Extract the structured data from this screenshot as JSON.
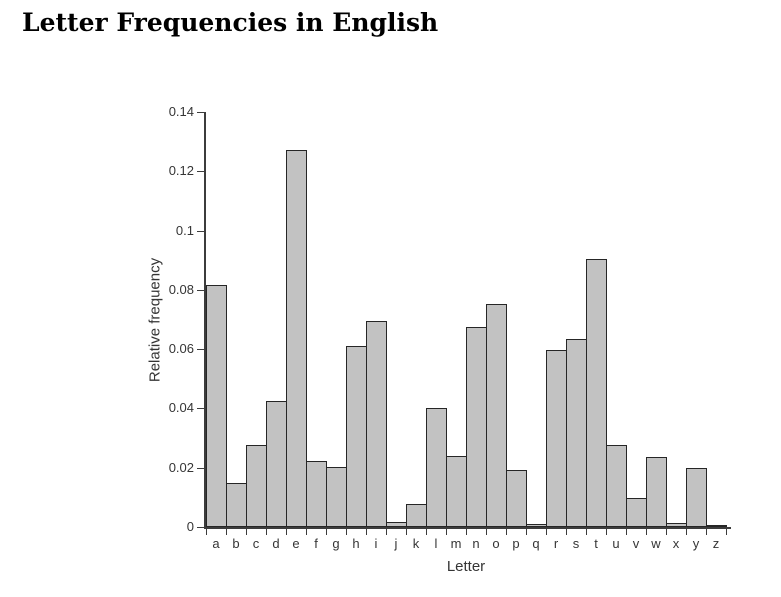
{
  "page": {
    "title": "Letter Frequencies in English"
  },
  "chart_data": {
    "type": "bar",
    "title": "Letter Frequencies in English",
    "xlabel": "Letter",
    "ylabel": "Relative frequency",
    "categories": [
      "a",
      "b",
      "c",
      "d",
      "e",
      "f",
      "g",
      "h",
      "i",
      "j",
      "k",
      "l",
      "m",
      "n",
      "o",
      "p",
      "q",
      "r",
      "s",
      "t",
      "u",
      "v",
      "w",
      "x",
      "y",
      "z"
    ],
    "values": [
      0.08167,
      0.01492,
      0.02782,
      0.04253,
      0.12702,
      0.02228,
      0.02015,
      0.06094,
      0.06966,
      0.00153,
      0.00772,
      0.04025,
      0.02406,
      0.06749,
      0.07507,
      0.01929,
      0.00095,
      0.05987,
      0.06327,
      0.09056,
      0.02758,
      0.00978,
      0.0236,
      0.0015,
      0.01974,
      0.00074
    ],
    "ylim": [
      0,
      0.14
    ],
    "yticks": [
      0,
      0.02,
      0.04,
      0.06,
      0.08,
      0.1,
      0.12,
      0.14
    ],
    "ytick_labels": [
      "0",
      "0.02",
      "0.04",
      "0.06",
      "0.08",
      "0.1",
      "0.12",
      "0.14"
    ],
    "grid": false,
    "legend": "none",
    "colors": {
      "background": "#ffffff",
      "bar_fill": "#c2c2c2",
      "bar_border": "#262626",
      "axis": "#3c3c3c",
      "axis_text": "#353535",
      "title_text": "#000000"
    }
  }
}
